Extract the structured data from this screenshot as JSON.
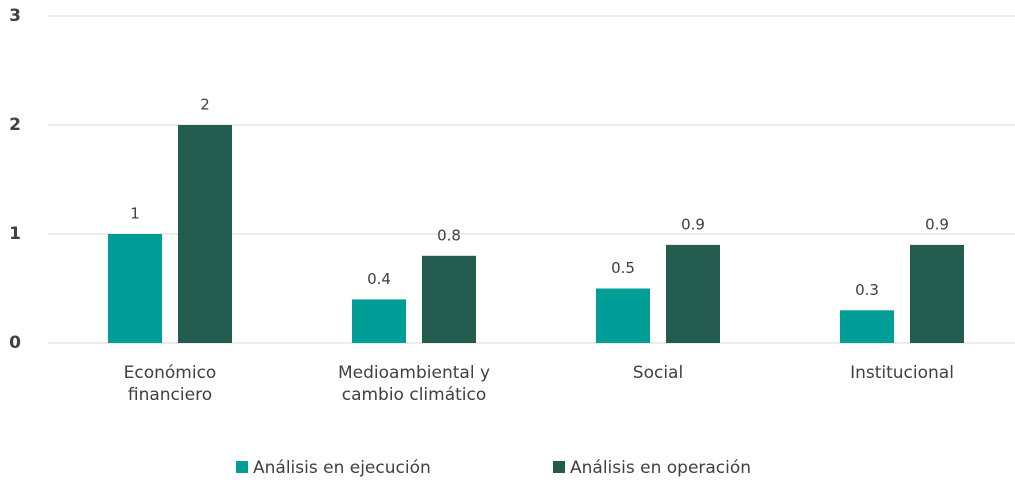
{
  "chart_data": {
    "type": "bar",
    "categories": [
      "Económico financiero",
      "Medioambiental y cambio climático",
      "Social",
      "Institucional"
    ],
    "series": [
      {
        "name": "Análisis en ejecución",
        "color": "#009e96",
        "values": [
          1,
          0.4,
          0.5,
          0.3
        ]
      },
      {
        "name": "Análisis en operación",
        "color": "#235b4e",
        "values": [
          2,
          0.8,
          0.9,
          0.9
        ]
      }
    ],
    "ylim": [
      0,
      3
    ],
    "yticks": [
      0,
      1,
      2,
      3
    ],
    "grid": true,
    "legend": "bottom"
  }
}
